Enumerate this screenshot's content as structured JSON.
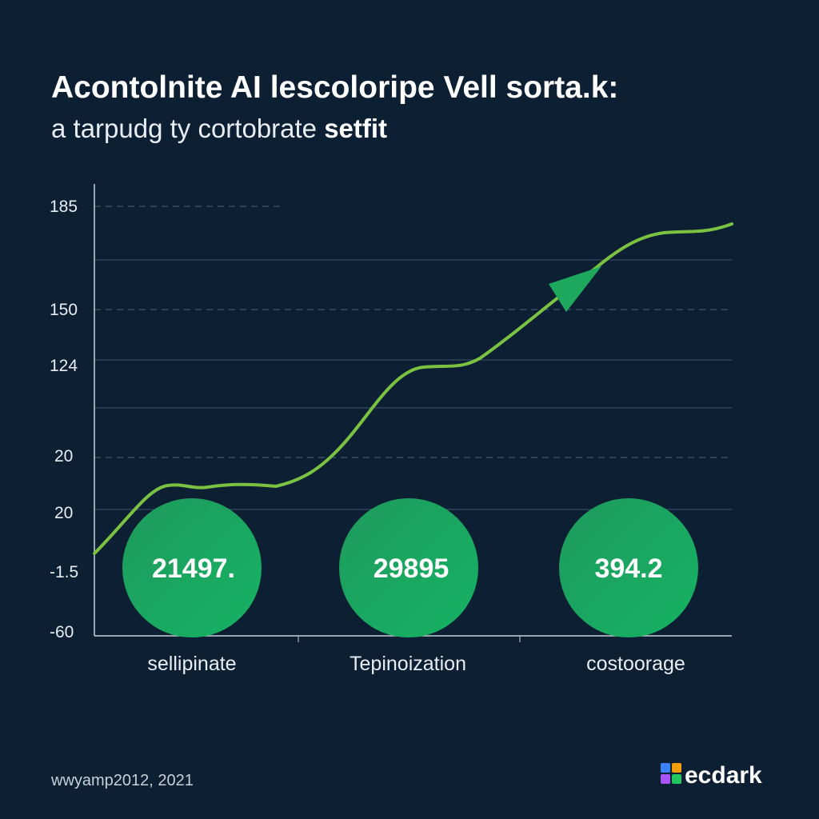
{
  "header": {
    "title": "Acontolnite AI lescoloripe Vell sorta.k:",
    "subtitle": "a tarpudg ty cortobrate",
    "subtitle_bold": "setfit"
  },
  "y_axis": {
    "labels": [
      "185",
      "150",
      "124",
      "20",
      "20",
      "-1.5",
      "-60"
    ]
  },
  "metrics": [
    {
      "value": "21497.",
      "label": "sellipinate"
    },
    {
      "value": "29895",
      "label": "Tepinoization"
    },
    {
      "value": "394.2",
      "label": "costoorage"
    }
  ],
  "footer": {
    "source": "wwyamp2012, 2021",
    "logo": "ecdark"
  }
}
